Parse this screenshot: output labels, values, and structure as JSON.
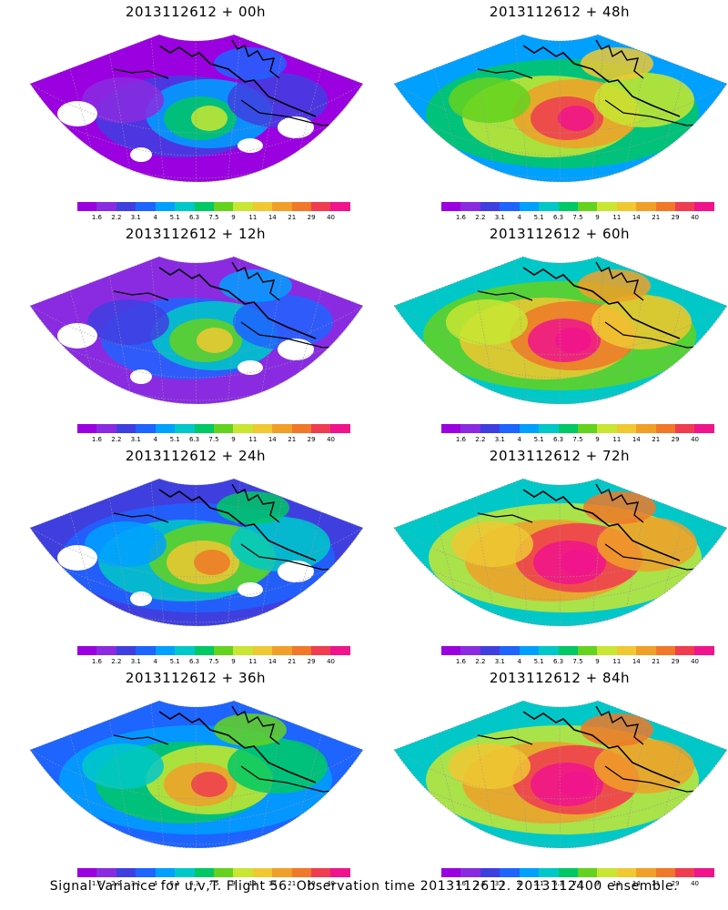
{
  "panels": [
    {
      "title": "2013112612 + 00h",
      "stage": 0
    },
    {
      "title": "2013112612 + 48h",
      "stage": 4
    },
    {
      "title": "2013112612 + 12h",
      "stage": 1
    },
    {
      "title": "2013112612 + 60h",
      "stage": 5
    },
    {
      "title": "2013112612 + 24h",
      "stage": 2
    },
    {
      "title": "2013112612 + 72h",
      "stage": 6
    },
    {
      "title": "2013112612 + 36h",
      "stage": 3
    },
    {
      "title": "2013112612 + 84h",
      "stage": 7
    }
  ],
  "colorbar": {
    "labels": [
      "1.6",
      "2.2",
      "3.1",
      "4",
      "5.1",
      "6.3",
      "7.5",
      "9",
      "11",
      "14",
      "21",
      "29",
      "40"
    ],
    "colors": [
      "#9b00e0",
      "#8a2be2",
      "#3f3fe0",
      "#1e64ff",
      "#00a0ff",
      "#00c8c8",
      "#00c864",
      "#64d21e",
      "#c8e632",
      "#f0c832",
      "#f0a028",
      "#f07828",
      "#f03c50",
      "#f0148c"
    ]
  },
  "caption": "Signal Variance for u,v,T. Flight 56. Observation time 2013112612. 2013112400 ensemble."
}
